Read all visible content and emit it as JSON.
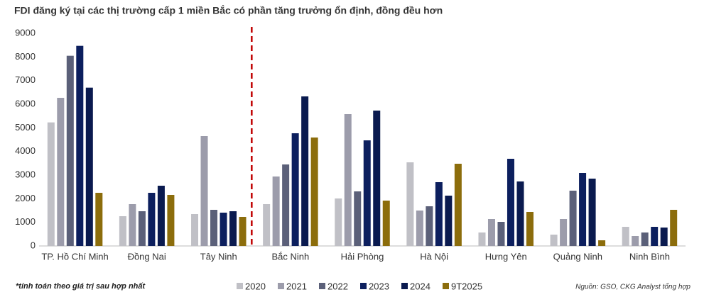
{
  "chart_data": {
    "type": "bar",
    "title": "FDI đăng ký tại các thị trường cấp 1 miền Bắc có phần tăng trưởng ổn định, đồng đều hơn",
    "categories": [
      "TP. Hồ Chí Minh",
      "Đồng Nai",
      "Tây Ninh",
      "Bắc Ninh",
      "Hải Phòng",
      "Hà Nội",
      "Hưng Yên",
      "Quảng Ninh",
      "Ninh Bình"
    ],
    "series": [
      {
        "name": "2020",
        "color": "#c0c0c6",
        "values": [
          5230,
          1260,
          1350,
          1770,
          2010,
          3540,
          570,
          480,
          810
        ]
      },
      {
        "name": "2021",
        "color": "#9c9cab",
        "values": [
          6270,
          1770,
          4650,
          2940,
          5580,
          1500,
          1140,
          1140,
          420
        ]
      },
      {
        "name": "2022",
        "color": "#5b6079",
        "values": [
          8050,
          1470,
          1530,
          3450,
          2310,
          1680,
          1020,
          2340,
          570
        ]
      },
      {
        "name": "2023",
        "color": "#0c1f5e",
        "values": [
          8470,
          2250,
          1410,
          4770,
          4470,
          2700,
          3690,
          3090,
          810
        ]
      },
      {
        "name": "2024",
        "color": "#0a1a4f",
        "values": [
          6700,
          2550,
          1470,
          6330,
          5730,
          2130,
          2730,
          2850,
          780
        ]
      },
      {
        "name": "9T2025",
        "color": "#8c6d0c",
        "values": [
          2250,
          2160,
          1230,
          4590,
          1920,
          3480,
          1440,
          240,
          1530
        ]
      }
    ],
    "ylim": [
      0,
      9000
    ],
    "yticks": [
      0,
      1000,
      2000,
      3000,
      4000,
      5000,
      6000,
      7000,
      8000,
      9000
    ],
    "grid": false,
    "footnote": "*tính toán theo giá trị sau hợp nhất",
    "source": "Nguồn: GSO, CKG Analyst tổng hợp"
  }
}
